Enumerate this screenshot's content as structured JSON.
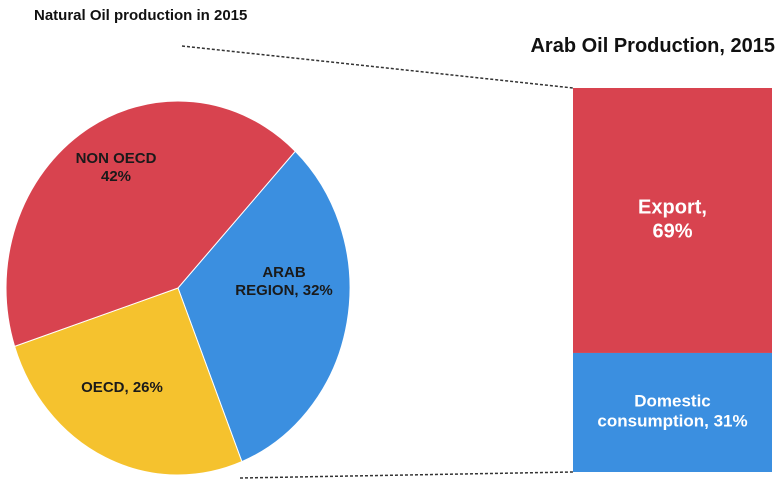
{
  "chart_data": [
    {
      "type": "pie",
      "title": "Natural Oil production in 2015",
      "values": [
        32,
        26,
        42
      ],
      "value_labels": [
        "ARAB\nREGION, 32%",
        "OECD, 26%",
        "NON OECD\n42%"
      ],
      "colors": [
        "#3b8fe0",
        "#f5c22e",
        "#d8434f"
      ]
    },
    {
      "type": "stacked-bar",
      "title": "Arab Oil Production, 2015",
      "series": [
        {
          "color": "#d8434f",
          "values": [
            69
          ],
          "value_labels": [
            "Export,\n69%"
          ]
        },
        {
          "color": "#3b8fe0",
          "values": [
            31
          ],
          "value_labels": [
            "Domestic\nconsumption, 31%"
          ]
        }
      ]
    }
  ]
}
